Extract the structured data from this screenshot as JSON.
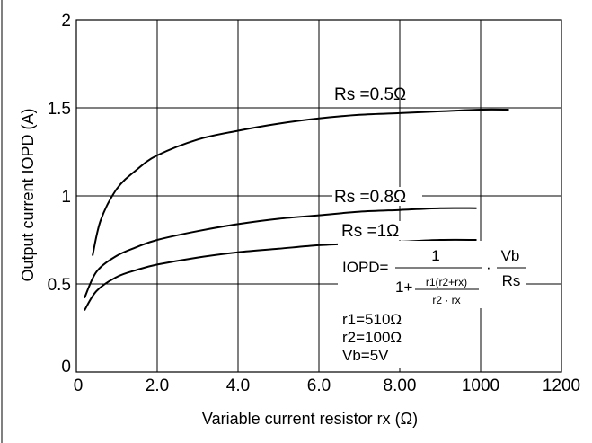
{
  "chart_data": {
    "type": "line",
    "xlabel": "Variable current resistor rx (Ω)",
    "ylabel": "Output current IOPD (A)",
    "x_tick_labels": [
      "0",
      "2.0",
      "4.0",
      "6.0",
      "8.00",
      "1000",
      "1200"
    ],
    "y_tick_labels": [
      "0",
      "0.5",
      "1",
      "1.5",
      "2"
    ],
    "xlim": [
      0,
      1200
    ],
    "ylim": [
      0,
      2
    ],
    "grid": true,
    "series": [
      {
        "name": "Rs =0.5Ω",
        "x": [
          40,
          60,
          100,
          150,
          200,
          300,
          400,
          500,
          600,
          700,
          800,
          900,
          1000,
          1070
        ],
        "y": [
          0.66,
          0.86,
          1.04,
          1.15,
          1.23,
          1.32,
          1.37,
          1.41,
          1.44,
          1.46,
          1.47,
          1.48,
          1.49,
          1.49
        ]
      },
      {
        "name": "Rs =0.8Ω",
        "x": [
          20,
          50,
          100,
          150,
          200,
          300,
          400,
          500,
          600,
          700,
          800,
          900,
          990
        ],
        "y": [
          0.42,
          0.57,
          0.66,
          0.71,
          0.75,
          0.8,
          0.84,
          0.87,
          0.89,
          0.91,
          0.92,
          0.93,
          0.93
        ]
      },
      {
        "name": "Rs =1Ω",
        "x": [
          20,
          50,
          100,
          150,
          200,
          300,
          400,
          500,
          600,
          700,
          800,
          900,
          990
        ],
        "y": [
          0.35,
          0.46,
          0.54,
          0.58,
          0.61,
          0.65,
          0.68,
          0.7,
          0.72,
          0.73,
          0.74,
          0.75,
          0.75
        ]
      }
    ],
    "formula": {
      "lhs": "IOPD=",
      "numerator": "1",
      "denominator_prefix": "1+",
      "inner_numerator": "r1(r2+rx)",
      "inner_denominator": "r2 · rx",
      "dot": "·",
      "vb": "Vb",
      "rs": "Rs"
    },
    "conditions": [
      "r1=510Ω",
      "r2=100Ω",
      "Vb=5V"
    ],
    "colors": {
      "line": "#000000",
      "grid": "#000000",
      "background": "#ffffff"
    }
  }
}
